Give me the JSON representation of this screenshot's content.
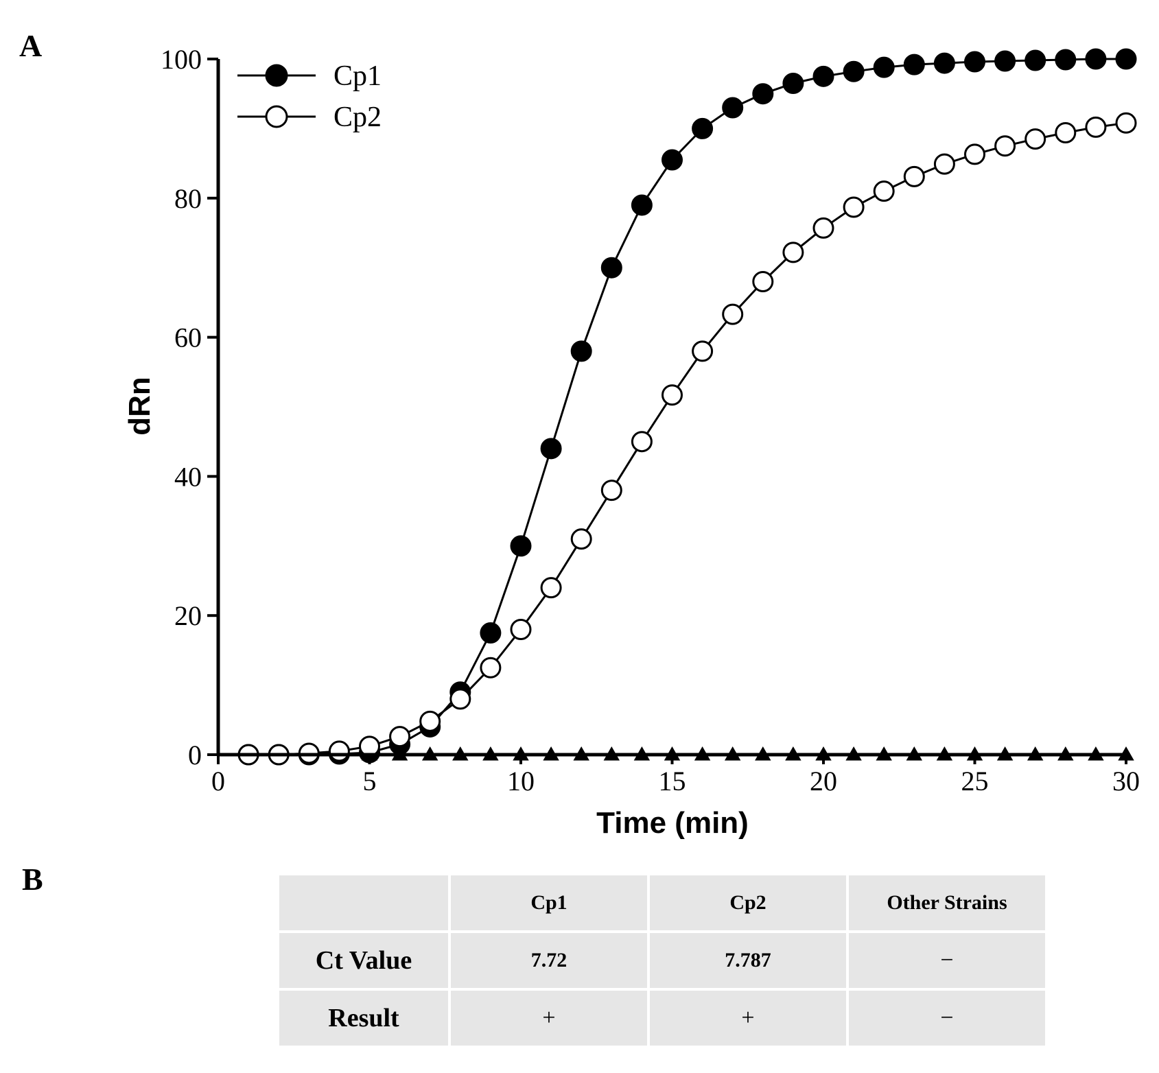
{
  "panel_a_label": "A",
  "panel_b_label": "B",
  "chart_data": {
    "type": "line",
    "xlabel": "Time (min)",
    "ylabel": "dRn",
    "xlim": [
      0,
      30
    ],
    "ylim": [
      0,
      100
    ],
    "xticks": [
      0,
      5,
      10,
      15,
      20,
      25,
      30
    ],
    "yticks": [
      0,
      20,
      40,
      60,
      80,
      100
    ],
    "legend_position": "top-left",
    "x": [
      1,
      2,
      3,
      4,
      5,
      6,
      7,
      8,
      9,
      10,
      11,
      12,
      13,
      14,
      15,
      16,
      17,
      18,
      19,
      20,
      21,
      22,
      23,
      24,
      25,
      26,
      27,
      28,
      29,
      30
    ],
    "series": [
      {
        "name": "Cp1",
        "marker": "filled-circle",
        "in_legend": true,
        "values": [
          0,
          0,
          0,
          0.1,
          0.3,
          1.5,
          4,
          9,
          17.5,
          30,
          44,
          58,
          70,
          79,
          85.5,
          90,
          93,
          95,
          96.5,
          97.5,
          98.2,
          98.8,
          99.2,
          99.4,
          99.6,
          99.7,
          99.8,
          99.9,
          100,
          100
        ]
      },
      {
        "name": "Cp2",
        "marker": "open-circle",
        "in_legend": true,
        "values": [
          0,
          0,
          0.2,
          0.5,
          1.2,
          2.6,
          4.8,
          8,
          12.5,
          18,
          24,
          31,
          38,
          45,
          51.7,
          58,
          63.3,
          68,
          72.2,
          75.7,
          78.7,
          81,
          83.1,
          84.9,
          86.3,
          87.5,
          88.5,
          89.4,
          90.2,
          90.8
        ]
      },
      {
        "name": "Other Strains",
        "marker": "filled-triangle",
        "in_legend": false,
        "values": [
          0,
          0,
          0,
          0,
          0,
          0,
          0,
          0,
          0,
          0,
          0,
          0,
          0,
          0,
          0,
          0,
          0,
          0,
          0,
          0,
          0,
          0,
          0,
          0,
          0,
          0,
          0,
          0,
          0,
          0
        ]
      }
    ]
  },
  "table": {
    "headers": [
      "",
      "Cp1",
      "Cp2",
      "Other Strains"
    ],
    "rows": [
      {
        "label": "Ct Value",
        "cells": [
          "7.72",
          "7.787",
          "−"
        ]
      },
      {
        "label": "Result",
        "cells": [
          "+",
          "+",
          "−"
        ]
      }
    ]
  }
}
